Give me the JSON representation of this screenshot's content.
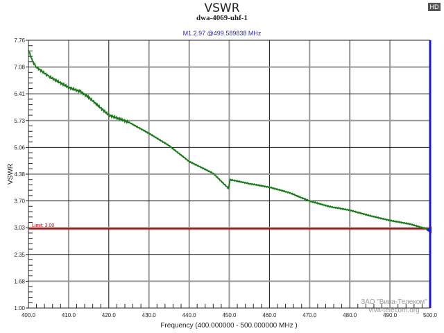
{
  "header": {
    "title": "VSWR",
    "subtitle": "dwa-4069-uhf-1",
    "marker_readout": "M1   2.97 @499.589838 MHz",
    "badge": "HD"
  },
  "watermark": {
    "line1": "ЗАО \"Вива-Телеком\"",
    "line2": "viva-telecom.org"
  },
  "colors": {
    "trace": "#1a7a1a",
    "limit": "#cc0000",
    "marker": "#1a1ad0",
    "grid_dark": "#111111",
    "grid_gray": "#999999"
  },
  "chart_data": {
    "type": "line",
    "title": "VSWR",
    "subtitle": "dwa-4069-uhf-1",
    "xlabel": "Frequency (400.000000 - 500.000000 MHz )",
    "ylabel": "VSWR",
    "xlim": [
      400,
      500
    ],
    "ylim": [
      1.0,
      7.76
    ],
    "x_ticks": [
      "400.0",
      "410.0",
      "420.0",
      "430.0",
      "440.0",
      "450.0",
      "460.0",
      "470.0",
      "480.0",
      "490.0",
      "500.0"
    ],
    "y_ticks": [
      "7.76",
      "7.08",
      "6.41",
      "5.73",
      "5.06",
      "4.38",
      "3.70",
      "3.03",
      "2.35",
      "1.68",
      "1.00"
    ],
    "grid": true,
    "series": [
      {
        "name": "VSWR",
        "x": [
          400,
          401,
          402,
          405,
          410,
          413,
          415,
          420,
          425,
          430,
          435,
          440,
          446,
          449.8,
          450.2,
          455,
          460,
          465,
          470,
          475,
          480,
          485,
          490,
          495,
          500
        ],
        "values": [
          7.51,
          7.23,
          7.08,
          6.85,
          6.57,
          6.46,
          6.32,
          5.87,
          5.69,
          5.41,
          5.1,
          4.7,
          4.4,
          4.02,
          4.24,
          4.14,
          4.05,
          3.91,
          3.7,
          3.56,
          3.47,
          3.33,
          3.21,
          3.12,
          2.97
        ]
      }
    ],
    "limit_line": {
      "label": "Limit: 3.00",
      "value": 3.0
    },
    "marker": {
      "name": "M1",
      "value": 2.97,
      "frequency_mhz": 499.589838
    }
  }
}
